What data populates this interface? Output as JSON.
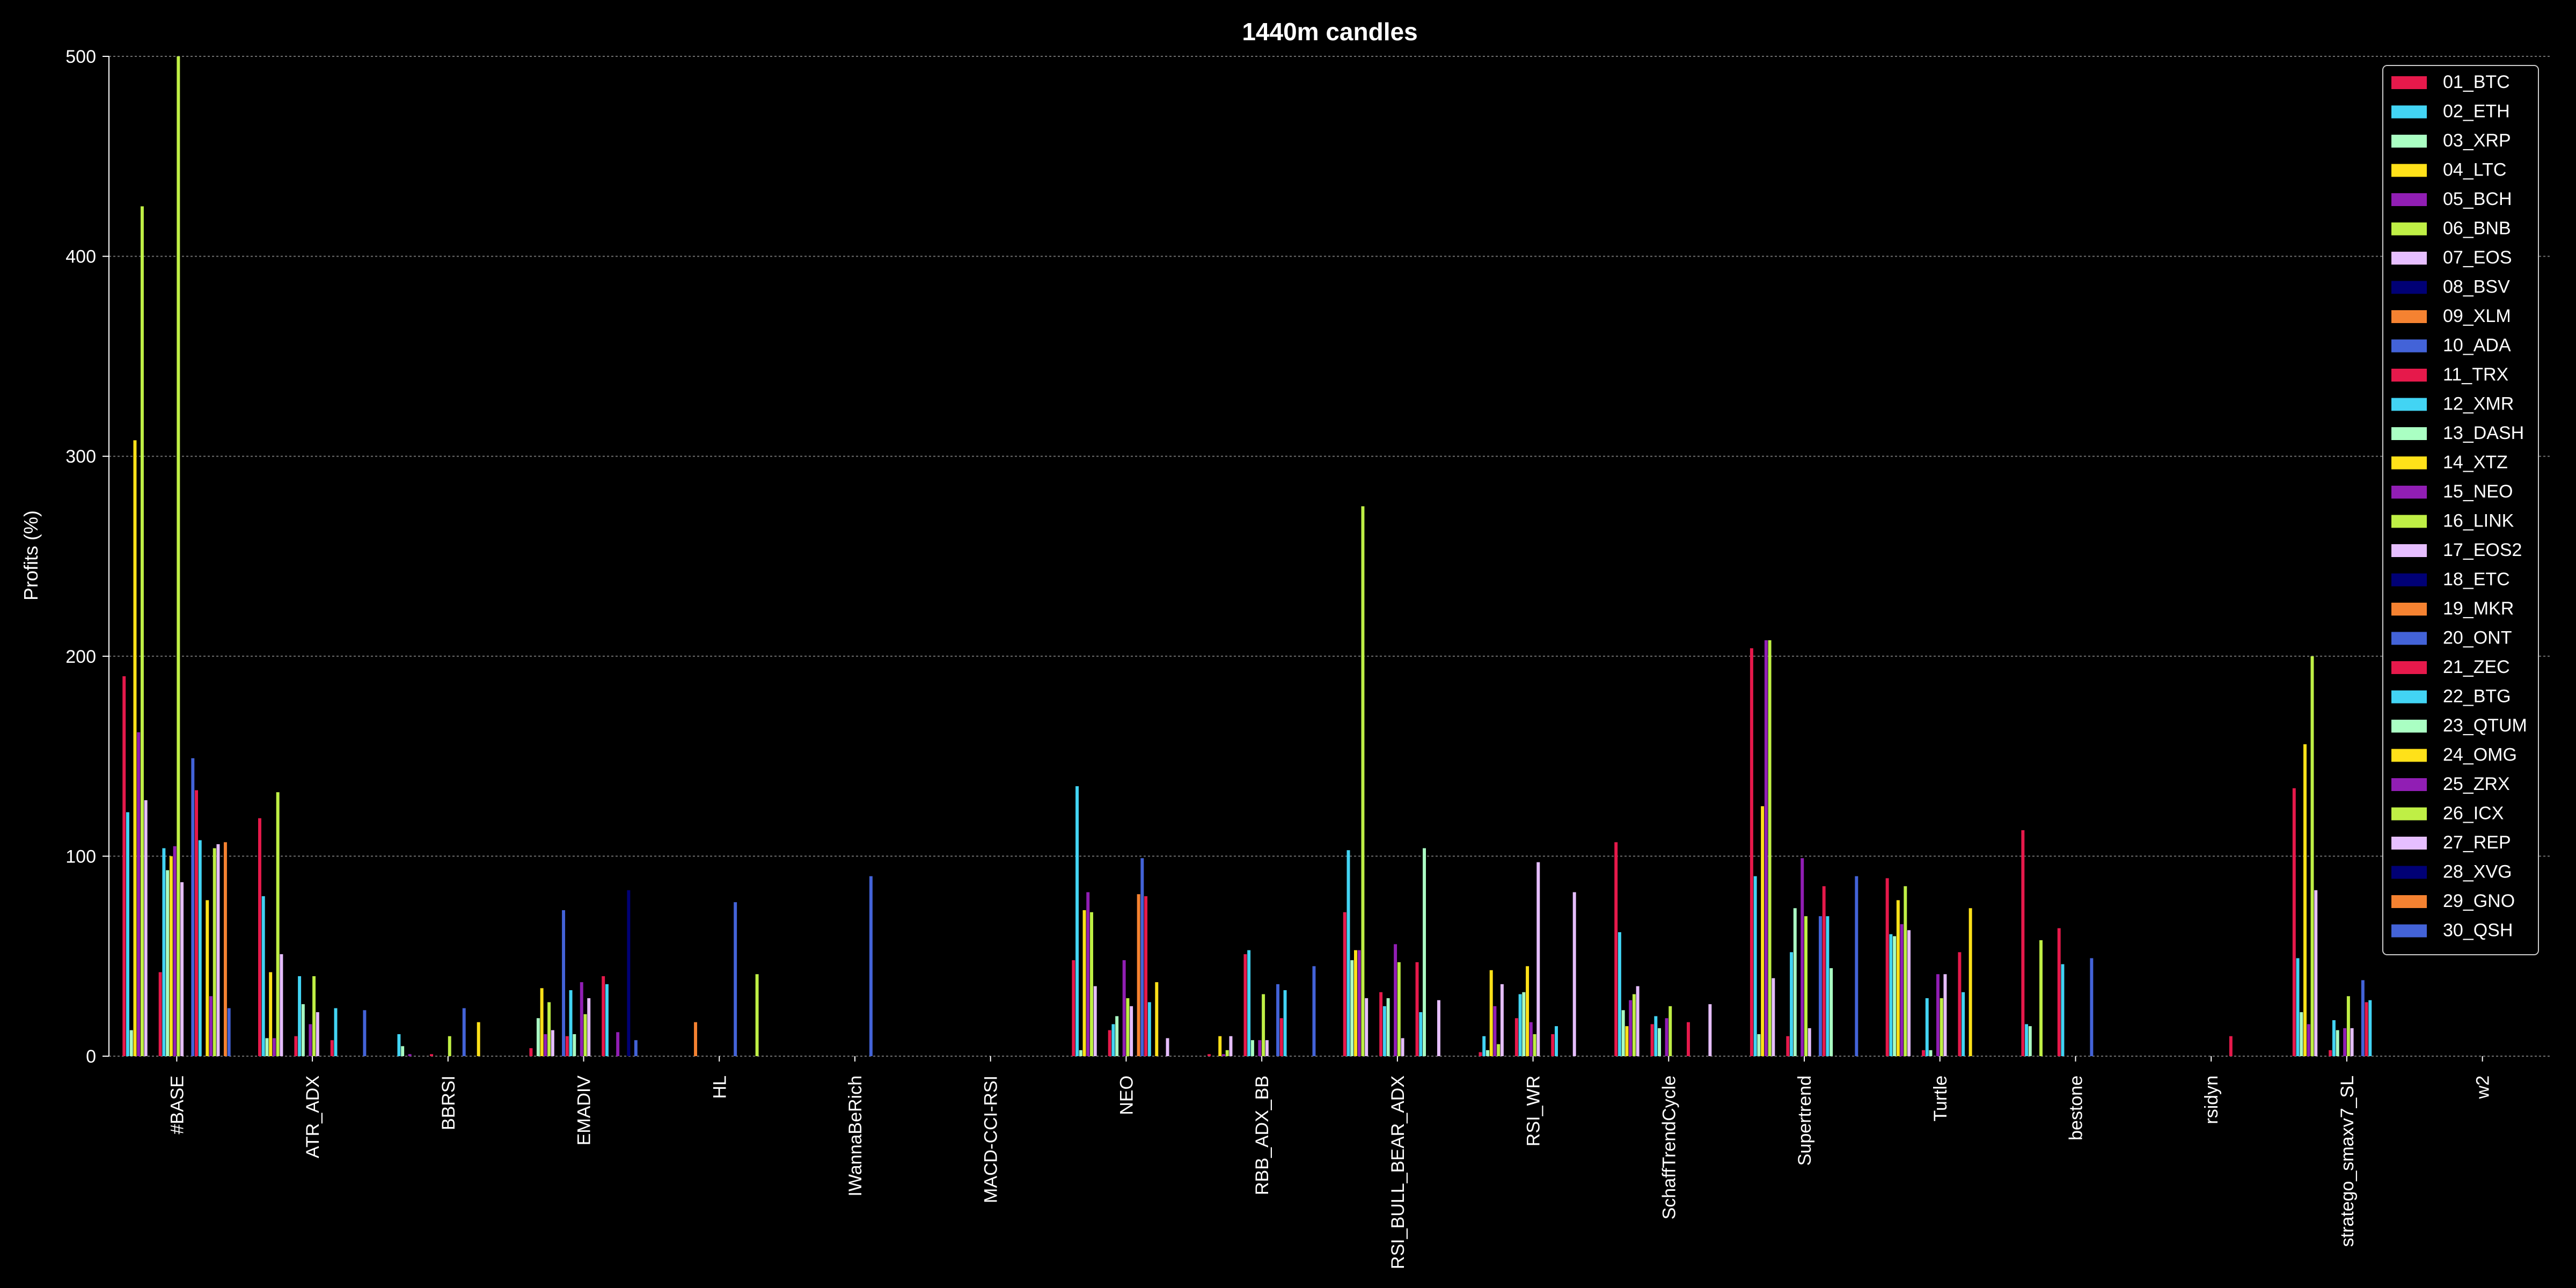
{
  "chart_data": {
    "type": "bar",
    "title": "1440m candles",
    "xlabel": "",
    "ylabel": "Profits (%)",
    "ylim": [
      0,
      500
    ],
    "yticks": [
      0,
      100,
      200,
      300,
      400,
      500
    ],
    "grid": true,
    "legend_position": "top-right",
    "categories": [
      "#BASE",
      "ATR_ADX",
      "BBRSI",
      "EMADIV",
      "HL",
      "IWannaBeRich",
      "MACD-CCI-RSI",
      "NEO",
      "RBB_ADX_BB",
      "RSI_BULL_BEAR_ADX",
      "RSI_WR",
      "SchaffTrendCycle",
      "Supertrend",
      "Turtle",
      "bestone",
      "rsidyn",
      "stratego_smaxv7_SL",
      "w2"
    ],
    "series": [
      {
        "name": "01_BTC",
        "color": "#e6194b",
        "values": [
          190,
          119,
          0,
          4,
          0,
          0,
          0,
          48,
          1,
          72,
          2,
          107,
          204,
          89,
          113,
          0,
          134,
          0
        ]
      },
      {
        "name": "02_ETH",
        "color": "#42d4f4",
        "values": [
          122,
          80,
          11,
          0,
          0,
          0,
          0,
          135,
          0,
          103,
          10,
          62,
          90,
          61,
          16,
          0,
          49,
          0
        ]
      },
      {
        "name": "03_XRP",
        "color": "#aaffc3",
        "values": [
          13,
          9,
          5,
          19,
          0,
          0,
          0,
          3,
          0,
          48,
          3,
          23,
          11,
          60,
          15,
          0,
          22,
          0
        ]
      },
      {
        "name": "04_LTC",
        "color": "#ffe119",
        "values": [
          308,
          42,
          0,
          34,
          0,
          0,
          0,
          73,
          10,
          53,
          43,
          15,
          125,
          78,
          0,
          0,
          156,
          0
        ]
      },
      {
        "name": "05_BCH",
        "color": "#911eb4",
        "values": [
          162,
          9,
          1,
          11,
          0,
          0,
          0,
          82,
          1,
          53,
          25,
          28,
          208,
          66,
          0,
          0,
          16,
          0
        ]
      },
      {
        "name": "06_BNB",
        "color": "#bfef45",
        "values": [
          425,
          132,
          0,
          27,
          0,
          0,
          0,
          72,
          3,
          275,
          6,
          31,
          208,
          85,
          58,
          0,
          200,
          0
        ]
      },
      {
        "name": "07_EOS",
        "color": "#e6beff",
        "values": [
          128,
          51,
          0,
          13,
          0,
          0,
          0,
          35,
          10,
          29,
          36,
          35,
          39,
          63,
          0,
          0,
          83,
          0
        ]
      },
      {
        "name": "08_BSV",
        "color": "#000075",
        "values": [
          0,
          0,
          0,
          0,
          0,
          0,
          0,
          0,
          0,
          0,
          0,
          0,
          0,
          0,
          0,
          0,
          0,
          0
        ]
      },
      {
        "name": "09_XLM",
        "color": "#f58231",
        "values": [
          0,
          0,
          0,
          0,
          17,
          0,
          0,
          0,
          0,
          0,
          0,
          0,
          0,
          0,
          0,
          0,
          0,
          0
        ]
      },
      {
        "name": "10_ADA",
        "color": "#4363d8",
        "values": [
          0,
          0,
          0,
          73,
          0,
          0,
          0,
          0,
          0,
          0,
          0,
          0,
          0,
          0,
          0,
          0,
          0,
          0
        ]
      },
      {
        "name": "11_TRX",
        "color": "#e6194b",
        "values": [
          42,
          10,
          1,
          10,
          0,
          0,
          0,
          13,
          51,
          32,
          19,
          16,
          10,
          3,
          64,
          0,
          3,
          0
        ]
      },
      {
        "name": "12_XMR",
        "color": "#42d4f4",
        "values": [
          104,
          40,
          0,
          33,
          0,
          0,
          0,
          16,
          53,
          25,
          31,
          20,
          52,
          29,
          46,
          0,
          18,
          0
        ]
      },
      {
        "name": "13_DASH",
        "color": "#aaffc3",
        "values": [
          93,
          26,
          0,
          11,
          0,
          0,
          0,
          20,
          8,
          29,
          32,
          14,
          74,
          3,
          0,
          0,
          13,
          0
        ]
      },
      {
        "name": "14_XTZ",
        "color": "#ffe119",
        "values": [
          100,
          0,
          0,
          0,
          0,
          0,
          0,
          0,
          0,
          0,
          45,
          0,
          0,
          0,
          0,
          0,
          0,
          0
        ]
      },
      {
        "name": "15_NEO",
        "color": "#911eb4",
        "values": [
          105,
          16,
          0,
          37,
          0,
          0,
          0,
          48,
          8,
          56,
          17,
          19,
          99,
          41,
          0,
          0,
          14,
          0
        ]
      },
      {
        "name": "16_LINK",
        "color": "#bfef45",
        "values": [
          500,
          40,
          10,
          21,
          0,
          0,
          0,
          29,
          31,
          47,
          11,
          25,
          70,
          29,
          0,
          0,
          30,
          0
        ]
      },
      {
        "name": "17_EOS2",
        "color": "#e6beff",
        "values": [
          87,
          22,
          0,
          29,
          0,
          0,
          0,
          25,
          8,
          9,
          97,
          0,
          14,
          41,
          0,
          0,
          14,
          0
        ]
      },
      {
        "name": "18_ETC",
        "color": "#000075",
        "values": [
          0,
          0,
          0,
          0,
          0,
          0,
          0,
          0,
          0,
          0,
          0,
          0,
          0,
          0,
          0,
          0,
          0,
          0
        ]
      },
      {
        "name": "19_MKR",
        "color": "#f58231",
        "values": [
          0,
          0,
          0,
          0,
          0,
          0,
          0,
          81,
          0,
          0,
          0,
          0,
          0,
          0,
          0,
          0,
          0,
          0
        ]
      },
      {
        "name": "20_ONT",
        "color": "#4363d8",
        "values": [
          149,
          0,
          24,
          0,
          77,
          90,
          0,
          99,
          36,
          0,
          0,
          0,
          70,
          0,
          49,
          0,
          38,
          0
        ]
      },
      {
        "name": "21_ZEC",
        "color": "#e6194b",
        "values": [
          133,
          8,
          0,
          40,
          0,
          0,
          0,
          80,
          19,
          47,
          11,
          17,
          85,
          52,
          0,
          10,
          27,
          0
        ]
      },
      {
        "name": "22_BTG",
        "color": "#42d4f4",
        "values": [
          108,
          24,
          0,
          36,
          0,
          0,
          0,
          27,
          33,
          22,
          15,
          0,
          70,
          32,
          0,
          0,
          28,
          0
        ]
      },
      {
        "name": "23_QTUM",
        "color": "#aaffc3",
        "values": [
          0,
          0,
          0,
          0,
          0,
          0,
          0,
          0,
          0,
          104,
          0,
          0,
          44,
          0,
          0,
          0,
          0,
          0
        ]
      },
      {
        "name": "24_OMG",
        "color": "#ffe119",
        "values": [
          78,
          0,
          17,
          0,
          0,
          0,
          0,
          37,
          0,
          0,
          0,
          0,
          0,
          74,
          0,
          0,
          0,
          0
        ]
      },
      {
        "name": "25_ZRX",
        "color": "#911eb4",
        "values": [
          30,
          0,
          0,
          12,
          0,
          0,
          0,
          0,
          0,
          0,
          0,
          0,
          0,
          0,
          0,
          0,
          0,
          0
        ]
      },
      {
        "name": "26_ICX",
        "color": "#bfef45",
        "values": [
          104,
          0,
          0,
          0,
          41,
          0,
          0,
          0,
          0,
          0,
          0,
          0,
          0,
          0,
          0,
          0,
          0,
          0
        ]
      },
      {
        "name": "27_REP",
        "color": "#e6beff",
        "values": [
          106,
          0,
          0,
          0,
          0,
          0,
          0,
          9,
          0,
          28,
          82,
          26,
          0,
          0,
          0,
          0,
          0,
          0
        ]
      },
      {
        "name": "28_XVG",
        "color": "#000075",
        "values": [
          0,
          0,
          0,
          83,
          0,
          0,
          0,
          0,
          0,
          0,
          0,
          0,
          0,
          0,
          0,
          0,
          0,
          0
        ]
      },
      {
        "name": "29_GNO",
        "color": "#f58231",
        "values": [
          107,
          0,
          0,
          0,
          0,
          0,
          0,
          0,
          0,
          0,
          0,
          0,
          0,
          0,
          0,
          0,
          0,
          0
        ]
      },
      {
        "name": "30_QSH",
        "color": "#4363d8",
        "values": [
          24,
          23,
          0,
          8,
          0,
          0,
          0,
          0,
          45,
          0,
          0,
          0,
          90,
          0,
          0,
          0,
          0,
          0
        ]
      }
    ]
  }
}
